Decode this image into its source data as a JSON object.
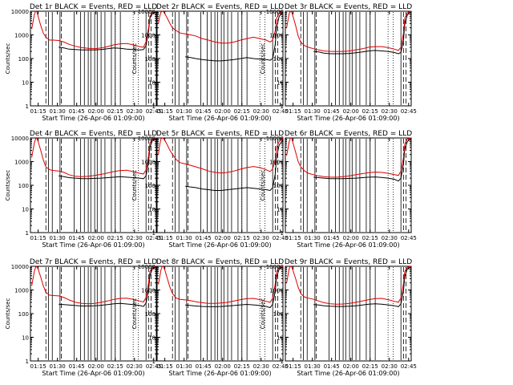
{
  "figure": {
    "x_tick_labels": [
      "01:15",
      "01:30",
      "01:45",
      "02:00",
      "02:15",
      "02:30",
      "02:45"
    ],
    "xlabel": "Start Time (26-Apr-06 01:09:00)",
    "ylabel": "Counts/sec",
    "y_tick_labels": [
      "1",
      "10",
      "100",
      "1000",
      "10000"
    ],
    "colors": {
      "events": "#000000",
      "lld": "#dd0000",
      "axes": "#000000"
    }
  },
  "chart_data": [
    {
      "type": "line",
      "title": "Det 1r BLACK = Events, RED = LLD",
      "x": [
        1,
        2,
        3,
        4,
        5,
        6,
        8,
        10,
        12,
        15,
        18,
        22,
        26,
        30,
        35,
        40,
        45,
        50,
        55,
        60,
        65,
        70,
        75,
        80,
        85,
        88,
        90,
        92,
        93,
        95,
        97,
        98
      ],
      "xlim": [
        0,
        98
      ],
      "ylim": [
        1,
        10000
      ],
      "yscale": "log",
      "xlabel": "Start Time (26-Apr-06 01:09:00)",
      "ylabel": "Counts/sec",
      "series": [
        {
          "name": "Events",
          "color": "#000000",
          "values": [
            null,
            null,
            null,
            null,
            null,
            null,
            null,
            null,
            null,
            null,
            null,
            300,
            280,
            250,
            240,
            230,
            230,
            230,
            240,
            260,
            280,
            270,
            250,
            240,
            230,
            240,
            350,
            1500,
            5000,
            8000,
            9000,
            9000
          ]
        },
        {
          "name": "LLD",
          "color": "#dd0000",
          "values": [
            1800,
            3500,
            7000,
            10000,
            9500,
            6000,
            2500,
            1200,
            800,
            600,
            600,
            580,
            500,
            400,
            330,
            290,
            270,
            260,
            280,
            320,
            380,
            420,
            430,
            380,
            320,
            300,
            500,
            2000,
            6000,
            9000,
            10000,
            10000
          ]
        }
      ]
    },
    {
      "type": "line",
      "title": "Det 2r BLACK = Events, RED = LLD",
      "x": [
        1,
        2,
        3,
        4,
        5,
        6,
        8,
        10,
        12,
        15,
        18,
        22,
        26,
        30,
        35,
        40,
        45,
        50,
        55,
        60,
        65,
        70,
        75,
        80,
        85,
        88,
        90,
        92,
        93,
        95,
        97,
        98
      ],
      "xlim": [
        0,
        98
      ],
      "ylim": [
        1,
        10000
      ],
      "yscale": "log",
      "xlabel": "Start Time (26-Apr-06 01:09:00)",
      "ylabel": "Counts/sec",
      "series": [
        {
          "name": "Events",
          "color": "#000000",
          "values": [
            null,
            null,
            null,
            null,
            null,
            null,
            null,
            null,
            null,
            null,
            null,
            120,
            110,
            100,
            90,
            85,
            80,
            80,
            85,
            90,
            100,
            110,
            100,
            95,
            90,
            85,
            100,
            400,
            2000,
            6000,
            8000,
            9000
          ]
        },
        {
          "name": "LLD",
          "color": "#dd0000",
          "values": [
            3000,
            6000,
            9000,
            10000,
            9500,
            8000,
            5000,
            3000,
            2000,
            1500,
            1200,
            1100,
            1000,
            900,
            700,
            600,
            500,
            450,
            450,
            500,
            600,
            700,
            800,
            700,
            600,
            500,
            600,
            1500,
            5000,
            8000,
            9500,
            10000
          ]
        }
      ]
    },
    {
      "type": "line",
      "title": "Det 3r BLACK = Events, RED = LLD",
      "x": [
        1,
        2,
        3,
        4,
        5,
        6,
        8,
        10,
        12,
        15,
        18,
        22,
        26,
        30,
        35,
        40,
        45,
        50,
        55,
        60,
        65,
        70,
        75,
        80,
        85,
        88,
        90,
        92,
        93,
        95,
        97,
        98
      ],
      "xlim": [
        0,
        98
      ],
      "ylim": [
        1,
        10000
      ],
      "yscale": "log",
      "xlabel": "Start Time (26-Apr-06 01:09:00)",
      "ylabel": "Counts/sec",
      "series": [
        {
          "name": "Events",
          "color": "#000000",
          "values": [
            null,
            null,
            null,
            null,
            null,
            null,
            null,
            null,
            null,
            null,
            null,
            200,
            190,
            170,
            160,
            160,
            160,
            165,
            175,
            190,
            210,
            220,
            210,
            200,
            180,
            160,
            180,
            600,
            3000,
            7000,
            9000,
            9500
          ]
        },
        {
          "name": "LLD",
          "color": "#dd0000",
          "values": [
            2000,
            4000,
            8000,
            10000,
            9000,
            6000,
            2500,
            900,
            500,
            350,
            300,
            260,
            230,
            210,
            200,
            200,
            200,
            210,
            230,
            260,
            300,
            320,
            320,
            290,
            250,
            220,
            300,
            1200,
            5000,
            8500,
            10000,
            10000
          ]
        }
      ]
    },
    {
      "type": "line",
      "title": "Det 4r BLACK = Events, RED = LLD",
      "x": [
        1,
        2,
        3,
        4,
        5,
        6,
        8,
        10,
        12,
        15,
        18,
        22,
        26,
        30,
        35,
        40,
        45,
        50,
        55,
        60,
        65,
        70,
        75,
        80,
        85,
        88,
        90,
        92,
        93,
        95,
        97,
        98
      ],
      "xlim": [
        0,
        98
      ],
      "ylim": [
        1,
        10000
      ],
      "yscale": "log",
      "xlabel": "Start Time (26-Apr-06 01:09:00)",
      "ylabel": "Counts/sec",
      "series": [
        {
          "name": "Events",
          "color": "#000000",
          "values": [
            null,
            null,
            null,
            null,
            null,
            null,
            null,
            null,
            null,
            null,
            null,
            250,
            230,
            210,
            200,
            190,
            190,
            195,
            200,
            210,
            220,
            230,
            220,
            210,
            200,
            190,
            250,
            1000,
            4000,
            8000,
            9000,
            9000
          ]
        },
        {
          "name": "LLD",
          "color": "#dd0000",
          "values": [
            1500,
            3000,
            6000,
            9000,
            10000,
            7000,
            3000,
            1200,
            600,
            450,
            420,
            400,
            350,
            280,
            240,
            230,
            240,
            260,
            290,
            330,
            380,
            420,
            430,
            380,
            320,
            300,
            450,
            1800,
            6000,
            9000,
            10000,
            10000
          ]
        }
      ]
    },
    {
      "type": "line",
      "title": "Det 5r BLACK = Events, RED = LLD",
      "x": [
        1,
        2,
        3,
        4,
        5,
        6,
        8,
        10,
        12,
        15,
        18,
        22,
        26,
        30,
        35,
        40,
        45,
        50,
        55,
        60,
        65,
        70,
        75,
        80,
        85,
        88,
        90,
        92,
        93,
        95,
        97,
        98
      ],
      "xlim": [
        0,
        98
      ],
      "ylim": [
        1,
        10000
      ],
      "yscale": "log",
      "xlabel": "Start Time (26-Apr-06 01:09:00)",
      "ylabel": "Counts/sec",
      "series": [
        {
          "name": "Events",
          "color": "#000000",
          "values": [
            null,
            null,
            null,
            null,
            null,
            null,
            null,
            null,
            null,
            null,
            null,
            90,
            85,
            80,
            70,
            65,
            60,
            60,
            65,
            70,
            75,
            80,
            75,
            70,
            65,
            60,
            80,
            300,
            1500,
            5000,
            7000,
            8000
          ]
        },
        {
          "name": "LLD",
          "color": "#dd0000",
          "values": [
            2000,
            5000,
            9000,
            10000,
            9500,
            8000,
            5000,
            3000,
            2000,
            1200,
            900,
            800,
            700,
            600,
            500,
            400,
            350,
            330,
            350,
            400,
            480,
            560,
            620,
            560,
            450,
            380,
            500,
            1200,
            4000,
            7000,
            9000,
            10000
          ]
        }
      ]
    },
    {
      "type": "line",
      "title": "Det 6r BLACK = Events, RED = LLD",
      "x": [
        1,
        2,
        3,
        4,
        5,
        6,
        8,
        10,
        12,
        15,
        18,
        22,
        26,
        30,
        35,
        40,
        45,
        50,
        55,
        60,
        65,
        70,
        75,
        80,
        85,
        88,
        90,
        92,
        93,
        95,
        97,
        98
      ],
      "xlim": [
        0,
        98
      ],
      "ylim": [
        1,
        10000
      ],
      "yscale": "log",
      "xlabel": "Start Time (26-Apr-06 01:09:00)",
      "ylabel": "Counts/sec",
      "series": [
        {
          "name": "Events",
          "color": "#000000",
          "values": [
            null,
            null,
            null,
            null,
            null,
            null,
            null,
            null,
            null,
            null,
            null,
            220,
            210,
            200,
            190,
            190,
            190,
            195,
            200,
            210,
            220,
            225,
            215,
            200,
            180,
            150,
            200,
            800,
            3500,
            7000,
            9000,
            9500
          ]
        },
        {
          "name": "LLD",
          "color": "#dd0000",
          "values": [
            1800,
            3500,
            7000,
            10000,
            9500,
            6000,
            2500,
            1000,
            600,
            400,
            320,
            280,
            250,
            230,
            220,
            220,
            230,
            250,
            280,
            310,
            340,
            360,
            350,
            320,
            280,
            260,
            400,
            1500,
            5500,
            9000,
            10000,
            10000
          ]
        }
      ]
    },
    {
      "type": "line",
      "title": "Det 7r BLACK = Events, RED = LLD",
      "x": [
        1,
        2,
        3,
        4,
        5,
        6,
        8,
        10,
        12,
        15,
        18,
        22,
        26,
        30,
        35,
        40,
        45,
        50,
        55,
        60,
        65,
        70,
        75,
        80,
        85,
        88,
        90,
        92,
        93,
        95,
        97,
        98
      ],
      "xlim": [
        0,
        98
      ],
      "ylim": [
        1,
        10000
      ],
      "yscale": "log",
      "xlabel": "Start Time (26-Apr-06 01:09:00)",
      "ylabel": "Counts/sec",
      "series": [
        {
          "name": "Events",
          "color": "#000000",
          "values": [
            null,
            null,
            null,
            null,
            null,
            null,
            null,
            null,
            null,
            null,
            null,
            250,
            240,
            230,
            220,
            210,
            210,
            215,
            225,
            240,
            260,
            270,
            255,
            240,
            220,
            200,
            280,
            1000,
            4000,
            8000,
            9000,
            9000
          ]
        },
        {
          "name": "LLD",
          "color": "#dd0000",
          "values": [
            1500,
            3000,
            6000,
            9000,
            10000,
            7500,
            3500,
            1500,
            800,
            600,
            580,
            560,
            480,
            380,
            300,
            270,
            260,
            270,
            300,
            340,
            400,
            440,
            450,
            400,
            340,
            310,
            480,
            2000,
            6000,
            9000,
            10000,
            10000
          ]
        }
      ]
    },
    {
      "type": "line",
      "title": "Det 8r BLACK = Events, RED = LLD",
      "x": [
        1,
        2,
        3,
        4,
        5,
        6,
        8,
        10,
        12,
        15,
        18,
        22,
        26,
        30,
        35,
        40,
        45,
        50,
        55,
        60,
        65,
        70,
        75,
        80,
        85,
        88,
        90,
        92,
        93,
        95,
        97,
        98
      ],
      "xlim": [
        0,
        98
      ],
      "ylim": [
        1,
        10000
      ],
      "yscale": "log",
      "xlabel": "Start Time (26-Apr-06 01:09:00)",
      "ylabel": "Counts/sec",
      "series": [
        {
          "name": "Events",
          "color": "#000000",
          "values": [
            null,
            null,
            null,
            null,
            null,
            null,
            null,
            null,
            null,
            null,
            null,
            230,
            220,
            210,
            200,
            195,
            195,
            200,
            210,
            220,
            235,
            245,
            235,
            220,
            200,
            180,
            250,
            900,
            3500,
            7500,
            9000,
            9000
          ]
        },
        {
          "name": "LLD",
          "color": "#dd0000",
          "values": [
            1700,
            3500,
            7000,
            10000,
            9500,
            7000,
            3000,
            1300,
            700,
            450,
            400,
            380,
            350,
            320,
            290,
            270,
            270,
            280,
            300,
            340,
            390,
            430,
            440,
            390,
            330,
            300,
            450,
            1800,
            6000,
            9000,
            10000,
            10000
          ]
        }
      ]
    },
    {
      "type": "line",
      "title": "Det 9r BLACK = Events, RED = LLD",
      "x": [
        1,
        2,
        3,
        4,
        5,
        6,
        8,
        10,
        12,
        15,
        18,
        22,
        26,
        30,
        35,
        40,
        45,
        50,
        55,
        60,
        65,
        70,
        75,
        80,
        85,
        88,
        90,
        92,
        93,
        95,
        97,
        98
      ],
      "xlim": [
        0,
        98
      ],
      "ylim": [
        1,
        10000
      ],
      "yscale": "log",
      "xlabel": "Start Time (26-Apr-06 01:09:00)",
      "ylabel": "Counts/sec",
      "series": [
        {
          "name": "Events",
          "color": "#000000",
          "values": [
            null,
            null,
            null,
            null,
            null,
            null,
            null,
            null,
            null,
            null,
            null,
            240,
            230,
            215,
            205,
            200,
            200,
            205,
            215,
            230,
            250,
            260,
            250,
            235,
            215,
            195,
            260,
            950,
            3800,
            7800,
            9000,
            9000
          ]
        },
        {
          "name": "LLD",
          "color": "#dd0000",
          "values": [
            2000,
            4000,
            8000,
            10000,
            9500,
            6500,
            3000,
            1300,
            700,
            500,
            450,
            400,
            340,
            290,
            260,
            250,
            255,
            270,
            300,
            340,
            390,
            430,
            440,
            390,
            330,
            300,
            460,
            1900,
            6000,
            9000,
            10000,
            10000
          ]
        }
      ]
    }
  ]
}
